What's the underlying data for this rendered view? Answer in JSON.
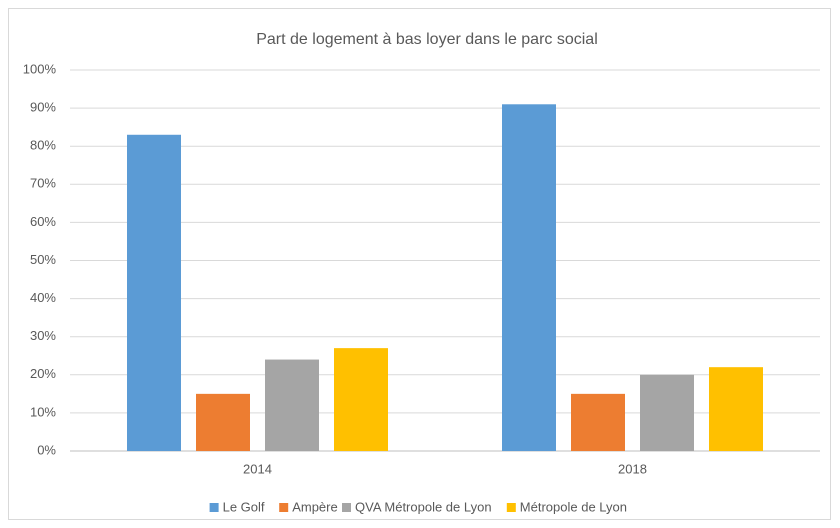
{
  "chart_data": {
    "type": "bar",
    "title": "Part de logement à bas loyer dans le parc social",
    "categories": [
      "2014",
      "2018"
    ],
    "series": [
      {
        "name": "Le Golf",
        "color": "#5b9bd5",
        "values": [
          83,
          91
        ]
      },
      {
        "name": "Ampère",
        "color": "#ed7d31",
        "values": [
          15,
          15
        ]
      },
      {
        "name": "QVA Métropole de Lyon",
        "color": "#a5a5a5",
        "values": [
          24,
          20
        ]
      },
      {
        "name": "Métropole de Lyon",
        "color": "#ffc000",
        "values": [
          27,
          22
        ]
      }
    ],
    "ylim": [
      0,
      100
    ],
    "yticks": [
      {
        "value": 0,
        "label": "0%"
      },
      {
        "value": 10,
        "label": "10%"
      },
      {
        "value": 20,
        "label": "20%"
      },
      {
        "value": 30,
        "label": "30%"
      },
      {
        "value": 40,
        "label": "40%"
      },
      {
        "value": 50,
        "label": "50%"
      },
      {
        "value": 60,
        "label": "60%"
      },
      {
        "value": 70,
        "label": "70%"
      },
      {
        "value": 80,
        "label": "80%"
      },
      {
        "value": 90,
        "label": "90%"
      },
      {
        "value": 100,
        "label": "100%"
      }
    ],
    "grid": true,
    "legend": "bottom"
  }
}
